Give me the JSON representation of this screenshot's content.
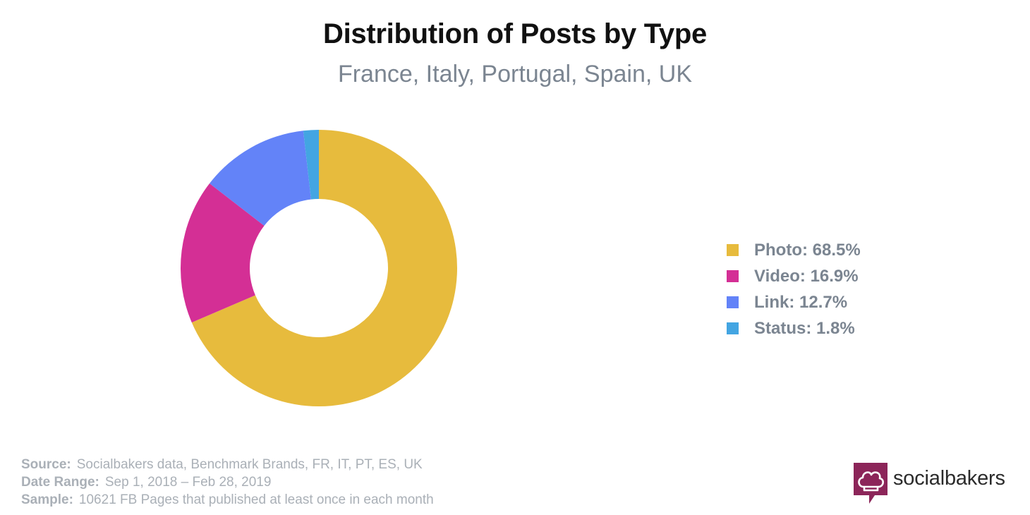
{
  "chart_data": {
    "type": "pie",
    "title": "Distribution of Posts by Type",
    "subtitle": "France, Italy, Portugal, Spain, UK",
    "donut": true,
    "legend_position": "right",
    "slices": [
      {
        "label": "Photo",
        "value": 68.5,
        "color": "#e7bb3d",
        "legend": "Photo: 68.5%"
      },
      {
        "label": "Video",
        "value": 16.9,
        "color": "#d42f95",
        "legend": "Video: 16.9%"
      },
      {
        "label": "Link",
        "value": 12.7,
        "color": "#6383f8",
        "legend": "Link: 12.7%"
      },
      {
        "label": "Status",
        "value": 1.8,
        "color": "#43a5e2",
        "legend": "Status: 1.8%"
      }
    ]
  },
  "footer": {
    "source_label": "Source:",
    "source_value": "Socialbakers data, Benchmark Brands, FR, IT, PT, ES, UK",
    "date_label": "Date Range:",
    "date_value": "Sep 1, 2018  – Feb 28, 2019",
    "sample_label": "Sample:",
    "sample_value": "10621 FB Pages that published at least once in each month"
  },
  "brand": {
    "name": "socialbakers",
    "logo_icon": "chef-hat-icon",
    "logo_color": "#8c2559"
  }
}
